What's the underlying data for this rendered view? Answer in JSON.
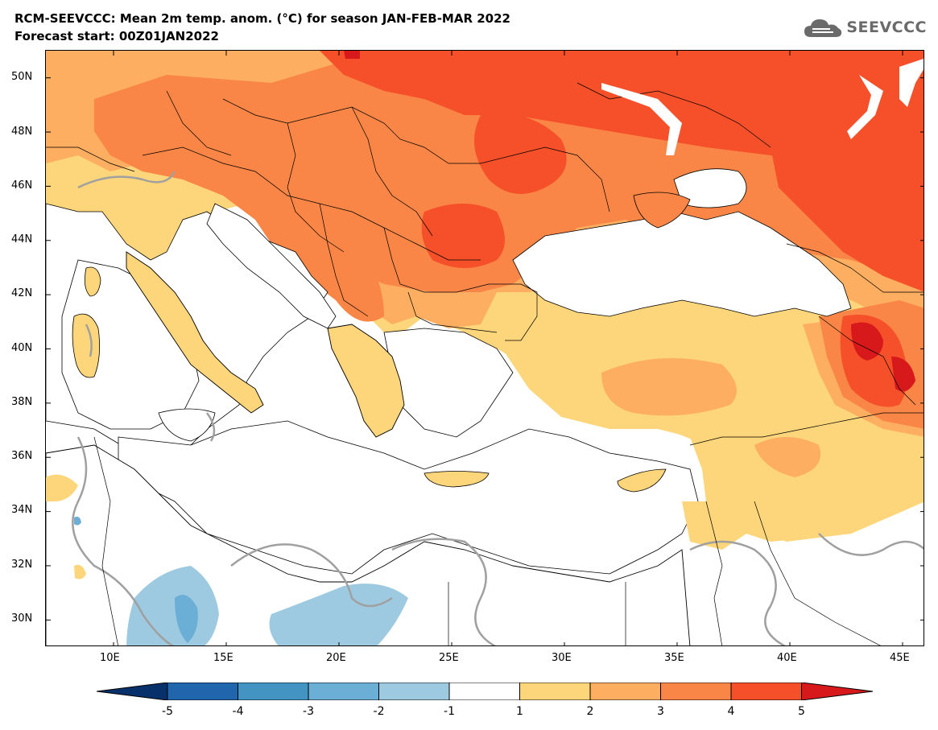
{
  "header": {
    "title_line1": "RCM-SEEVCCC: Mean 2m temp. anom. (°C) for season JAN-FEB-MAR 2022",
    "title_line2": "Forecast start: 00Z01JAN2022",
    "logo_text": "SEEVCCC"
  },
  "map": {
    "projection": "lat-lon",
    "lon_range": [
      7,
      46
    ],
    "lat_range": [
      29,
      51
    ],
    "lat_ticks": [
      {
        "value": 50,
        "label": "50N"
      },
      {
        "value": 48,
        "label": "48N"
      },
      {
        "value": 46,
        "label": "46N"
      },
      {
        "value": 44,
        "label": "44N"
      },
      {
        "value": 42,
        "label": "42N"
      },
      {
        "value": 40,
        "label": "40N"
      },
      {
        "value": 38,
        "label": "38N"
      },
      {
        "value": 36,
        "label": "36N"
      },
      {
        "value": 34,
        "label": "34N"
      },
      {
        "value": 32,
        "label": "32N"
      },
      {
        "value": 30,
        "label": "30N"
      }
    ],
    "lon_ticks": [
      {
        "value": 10,
        "label": "10E"
      },
      {
        "value": 15,
        "label": "15E"
      },
      {
        "value": 20,
        "label": "20E"
      },
      {
        "value": 25,
        "label": "25E"
      },
      {
        "value": 30,
        "label": "30E"
      },
      {
        "value": 35,
        "label": "35E"
      },
      {
        "value": 40,
        "label": "40E"
      },
      {
        "value": 45,
        "label": "45E"
      }
    ]
  },
  "colorbar": {
    "levels": [
      "-5",
      "-4",
      "-3",
      "-2",
      "-1",
      "1",
      "2",
      "3",
      "4",
      "5"
    ],
    "colors": [
      "#08306b",
      "#2166ac",
      "#4393c3",
      "#6baed6",
      "#9ecae1",
      "#ffffff",
      "#fdd57a",
      "#fdae61",
      "#f98646",
      "#f5502a",
      "#d7191c"
    ]
  },
  "colors": {
    "anom_1_2": "#fdd57a",
    "anom_2_3": "#fdae61",
    "anom_3_4": "#f98646",
    "anom_4_5": "#f5502a",
    "anom_gt_5": "#d7191c",
    "anom_m1_m2": "#9ecae1",
    "anom_m2_m3": "#6baed6",
    "zero_contour": "#a0a0a0"
  }
}
